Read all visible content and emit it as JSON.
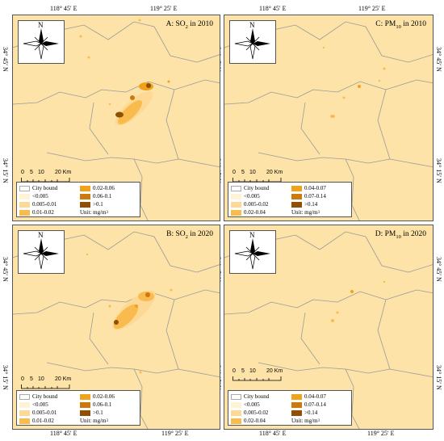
{
  "coords": {
    "lon_left": "118° 45′ E",
    "lon_right": "119° 25′ E",
    "lat_top": "34° 45′ N",
    "lat_bottom": "34° 15′ N"
  },
  "compass_label": "N",
  "scale": {
    "ticks": [
      "0",
      "5",
      "10",
      "20 Km"
    ]
  },
  "panels": {
    "a": {
      "title_prefix": "A: SO",
      "sub": "2",
      "title_suffix": " in 2010"
    },
    "b": {
      "title_prefix": "B: SO",
      "sub": "2",
      "title_suffix": " in 2020"
    },
    "c": {
      "title_prefix": "C: PM",
      "sub": "10",
      "title_suffix": " in 2010"
    },
    "d": {
      "title_prefix": "D: PM",
      "sub": "10",
      "title_suffix": " in 2020"
    }
  },
  "legend_so2": {
    "city": "City bound",
    "c1": "<0.005",
    "c2": "0.005-0.01",
    "c3": "0.01-0.02",
    "c4": "0.02-0.06",
    "c5": "0.06-0.1",
    "c6": ">0.1",
    "unit": "Unit: mg/m",
    "unit_sup": "3"
  },
  "legend_pm": {
    "city": "City bound",
    "c1": "<0.005",
    "c2": "0.005-0.02",
    "c3": "0.02-0.04",
    "c4": "0.04-0.07",
    "c5": "0.07-0.14",
    "c6": ">0.14",
    "unit": "Unit: mg/m",
    "unit_sup": "3"
  },
  "colors": {
    "base": "#fde3a7",
    "c1": "#fff3d6",
    "c2": "#fdd995",
    "c3": "#f9bb4e",
    "c4": "#f0a31a",
    "c5": "#cc7a0e",
    "c6": "#8f4f04",
    "boundary": "#9a9a9a"
  }
}
